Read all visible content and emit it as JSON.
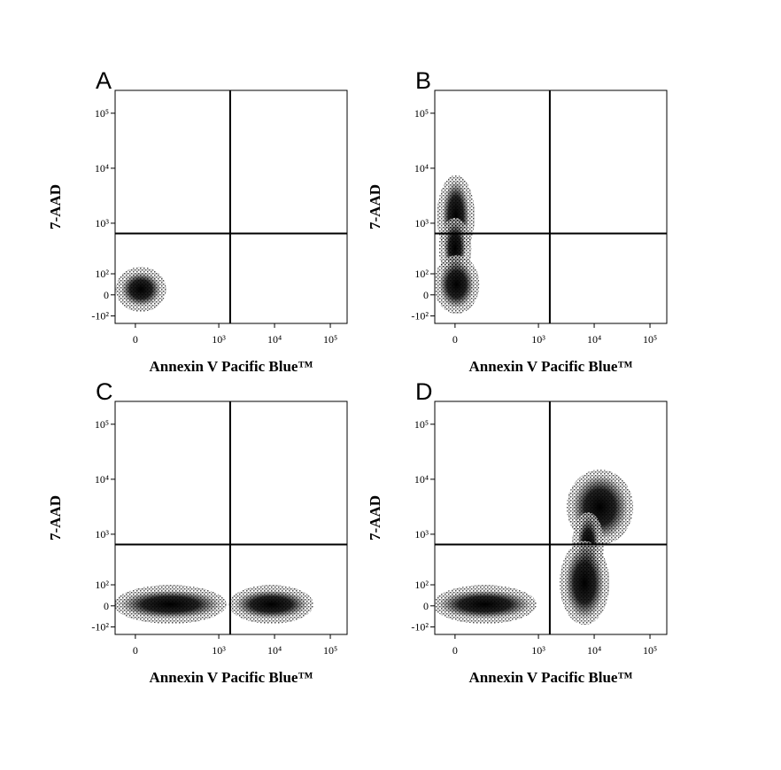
{
  "chart_data": [
    {
      "type": "scatter",
      "title": "A",
      "xlabel": "Annexin V Pacific Blue™",
      "ylabel": "7-AAD",
      "xscale": "biexponential",
      "yscale": "biexponential",
      "color": "#000000",
      "xlim": [
        -60,
        200000
      ],
      "ylim": [
        -150,
        260000
      ],
      "xticks": [
        0,
        {
          "value": 1000,
          "label": "10³"
        },
        {
          "value": 10000,
          "label": "10⁴"
        },
        {
          "value": 100000,
          "label": "10⁵"
        }
      ],
      "yticks": [
        {
          "value": -100,
          "label": "-10²"
        },
        0,
        {
          "value": 100,
          "label": "10²"
        },
        {
          "value": 1000,
          "label": "10³"
        },
        {
          "value": 10000,
          "label": "10⁴"
        },
        {
          "value": 100000,
          "label": "10⁵"
        }
      ],
      "gate": {
        "x": 1600,
        "y": 650
      },
      "populations": [
        {
          "x": [
            -40,
            80
          ],
          "y": [
            -50,
            110
          ]
        }
      ]
    },
    {
      "type": "scatter",
      "title": "B",
      "xlabel": "Annexin V Pacific Blue™",
      "ylabel": "7-AAD",
      "xscale": "biexponential",
      "yscale": "biexponential",
      "color": "#000000",
      "xlim": [
        -60,
        200000
      ],
      "ylim": [
        -150,
        260000
      ],
      "xticks": [
        0,
        {
          "value": 1000,
          "label": "10³"
        },
        {
          "value": 10000,
          "label": "10⁴"
        },
        {
          "value": 100000,
          "label": "10⁵"
        }
      ],
      "yticks": [
        {
          "value": -100,
          "label": "-10²"
        },
        0,
        {
          "value": 100,
          "label": "10²"
        },
        {
          "value": 1000,
          "label": "10³"
        },
        {
          "value": 10000,
          "label": "10⁴"
        },
        {
          "value": 100000,
          "label": "10⁵"
        }
      ],
      "gate": {
        "x": 1600,
        "y": 650
      },
      "populations": [
        {
          "x": [
            -35,
            40
          ],
          "y": [
            300,
            6000
          ]
        },
        {
          "x": [
            -30,
            30
          ],
          "y": [
            100,
            1000
          ]
        },
        {
          "x": [
            -45,
            55
          ],
          "y": [
            -60,
            200
          ]
        }
      ]
    },
    {
      "type": "scatter",
      "title": "C",
      "xlabel": "Annexin V Pacific Blue™",
      "ylabel": "7-AAD",
      "xscale": "biexponential",
      "yscale": "biexponential",
      "color": "#000000",
      "xlim": [
        -60,
        200000
      ],
      "ylim": [
        -150,
        260000
      ],
      "xticks": [
        0,
        {
          "value": 1000,
          "label": "10³"
        },
        {
          "value": 10000,
          "label": "10⁴"
        },
        {
          "value": 100000,
          "label": "10⁵"
        }
      ],
      "yticks": [
        {
          "value": -100,
          "label": "-10²"
        },
        0,
        {
          "value": 100,
          "label": "10²"
        },
        {
          "value": 1000,
          "label": "10³"
        },
        {
          "value": 10000,
          "label": "10⁴"
        },
        {
          "value": 100000,
          "label": "10⁵"
        }
      ],
      "gate": {
        "x": 1600,
        "y": 650
      },
      "populations": [
        {
          "x": [
            -45,
            1100
          ],
          "y": [
            -55,
            70
          ]
        },
        {
          "x": [
            1900,
            40000
          ],
          "y": [
            -55,
            70
          ]
        }
      ]
    },
    {
      "type": "scatter",
      "title": "D",
      "xlabel": "Annexin V Pacific Blue™",
      "ylabel": "7-AAD",
      "xscale": "biexponential",
      "yscale": "biexponential",
      "color": "#000000",
      "xlim": [
        -60,
        200000
      ],
      "ylim": [
        -150,
        260000
      ],
      "xticks": [
        0,
        {
          "value": 1000,
          "label": "10³"
        },
        {
          "value": 10000,
          "label": "10⁴"
        },
        {
          "value": 100000,
          "label": "10⁵"
        }
      ],
      "yticks": [
        {
          "value": -100,
          "label": "-10²"
        },
        0,
        {
          "value": 100,
          "label": "10²"
        },
        {
          "value": 1000,
          "label": "10³"
        },
        {
          "value": 10000,
          "label": "10⁴"
        },
        {
          "value": 100000,
          "label": "10⁵"
        }
      ],
      "gate": {
        "x": 1600,
        "y": 650
      },
      "populations": [
        {
          "x": [
            -48,
            740
          ],
          "y": [
            -55,
            70
          ]
        },
        {
          "x": [
            4000,
            40000
          ],
          "y": [
            800,
            12000
          ]
        },
        {
          "x": [
            5000,
            12000
          ],
          "y": [
            200,
            2000
          ]
        },
        {
          "x": [
            3000,
            15000
          ],
          "y": [
            -60,
            600
          ]
        }
      ]
    }
  ]
}
